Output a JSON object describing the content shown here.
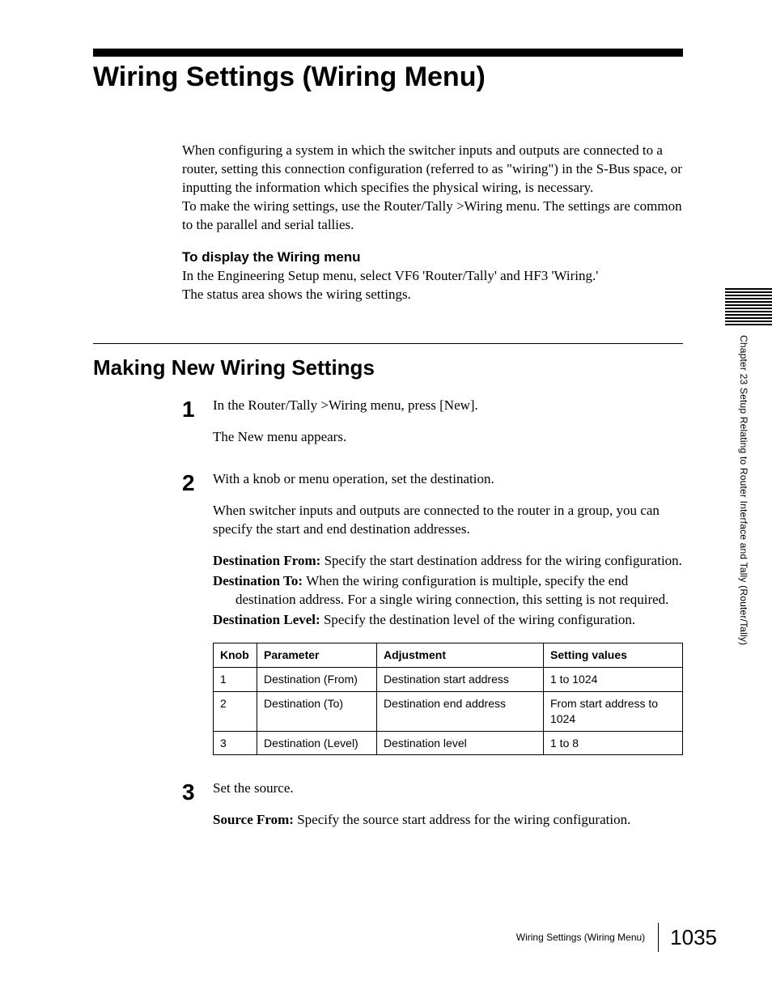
{
  "title": "Wiring Settings (Wiring Menu)",
  "intro": {
    "p1": "When configuring a system in which the switcher inputs and outputs are connected to a router, setting this connection configuration (referred to as \"wiring\") in the S-Bus space, or inputting the information which specifies the physical wiring, is necessary.",
    "p2": "To make the wiring settings, use the Router/Tally >Wiring menu. The settings are common to the parallel and serial tallies."
  },
  "display_section": {
    "heading": "To display the Wiring menu",
    "p1": "In the Engineering Setup menu, select VF6 'Router/Tally' and HF3 'Wiring.'",
    "p2": "The status area shows the wiring settings."
  },
  "section2_title": "Making New Wiring Settings",
  "steps": {
    "s1": {
      "num": "1",
      "p1": "In the Router/Tally >Wiring menu, press [New].",
      "p2": "The New menu appears."
    },
    "s2": {
      "num": "2",
      "p1": "With a knob or menu operation, set the destination.",
      "p2": "When switcher inputs and outputs are connected to the router in a group, you can specify the start and end destination addresses.",
      "def1_term": "Destination From: ",
      "def1_body": "Specify the start destination address for the wiring configuration.",
      "def2_term": "Destination To: ",
      "def2_body": "When the wiring configuration is multiple, specify the end destination address. For a single wiring connection, this setting is not required.",
      "def3_term": "Destination Level: ",
      "def3_body": "Specify the destination level of the wiring configuration."
    },
    "s3": {
      "num": "3",
      "p1": "Set the source.",
      "def1_term": "Source From: ",
      "def1_body": "Specify the source start address for the wiring configuration."
    }
  },
  "table": {
    "headers": {
      "c1": "Knob",
      "c2": "Parameter",
      "c3": "Adjustment",
      "c4": "Setting values"
    },
    "r1": {
      "c1": "1",
      "c2": "Destination (From)",
      "c3": "Destination start address",
      "c4": "1 to 1024"
    },
    "r2": {
      "c1": "2",
      "c2": "Destination (To)",
      "c3": "Destination end address",
      "c4": "From start address to 1024"
    },
    "r3": {
      "c1": "3",
      "c2": "Destination (Level)",
      "c3": "Destination level",
      "c4": "1 to 8"
    }
  },
  "thumb_index": {
    "label": "Chapter 23   Setup Relating to Router Interface and Tally (Router/Tally)"
  },
  "footer": {
    "title": "Wiring Settings (Wiring Menu)",
    "page": "1035"
  },
  "style": {
    "col_widths": {
      "c1": "54px",
      "c2": "148px",
      "c3": "206px",
      "c4": "auto"
    }
  }
}
